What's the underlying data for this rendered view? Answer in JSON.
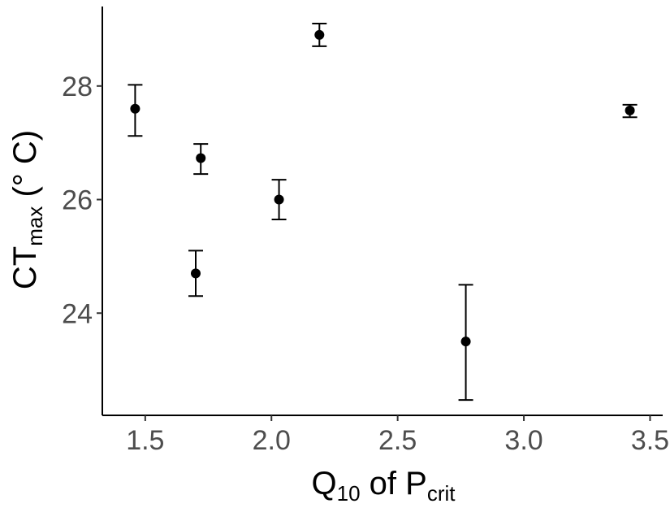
{
  "chart_data": {
    "type": "scatter",
    "title": "",
    "xlabel": {
      "main": "Q",
      "sub": "10",
      "mid": " of P",
      "sub2": "crit"
    },
    "ylabel": {
      "main": "CT",
      "sub": "max",
      "rest": " (° C)"
    },
    "xlim": [
      1.33,
      3.55
    ],
    "ylim": [
      22.2,
      29.4
    ],
    "xticks": [
      1.5,
      2.0,
      2.5,
      3.0,
      3.5
    ],
    "xtick_labels": [
      "1.5",
      "2.0",
      "2.5",
      "3.0",
      "3.5"
    ],
    "yticks": [
      24,
      26,
      28
    ],
    "ytick_labels": [
      "24",
      "26",
      "28"
    ],
    "grid": false,
    "legend": "none",
    "colors": {
      "points": "#000000",
      "axis": "#000000",
      "tick_labels": "#4d4d4d"
    },
    "points": [
      {
        "x": 1.46,
        "y": 27.6,
        "ymin": 27.12,
        "ymax": 28.02
      },
      {
        "x": 1.7,
        "y": 24.7,
        "ymin": 24.3,
        "ymax": 25.1
      },
      {
        "x": 1.72,
        "y": 26.73,
        "ymin": 26.45,
        "ymax": 26.98
      },
      {
        "x": 2.03,
        "y": 26.0,
        "ymin": 25.65,
        "ymax": 26.35
      },
      {
        "x": 2.19,
        "y": 28.9,
        "ymin": 28.7,
        "ymax": 29.1
      },
      {
        "x": 2.77,
        "y": 23.5,
        "ymin": 22.47,
        "ymax": 24.5
      },
      {
        "x": 3.42,
        "y": 27.57,
        "ymin": 27.45,
        "ymax": 27.67
      }
    ]
  }
}
